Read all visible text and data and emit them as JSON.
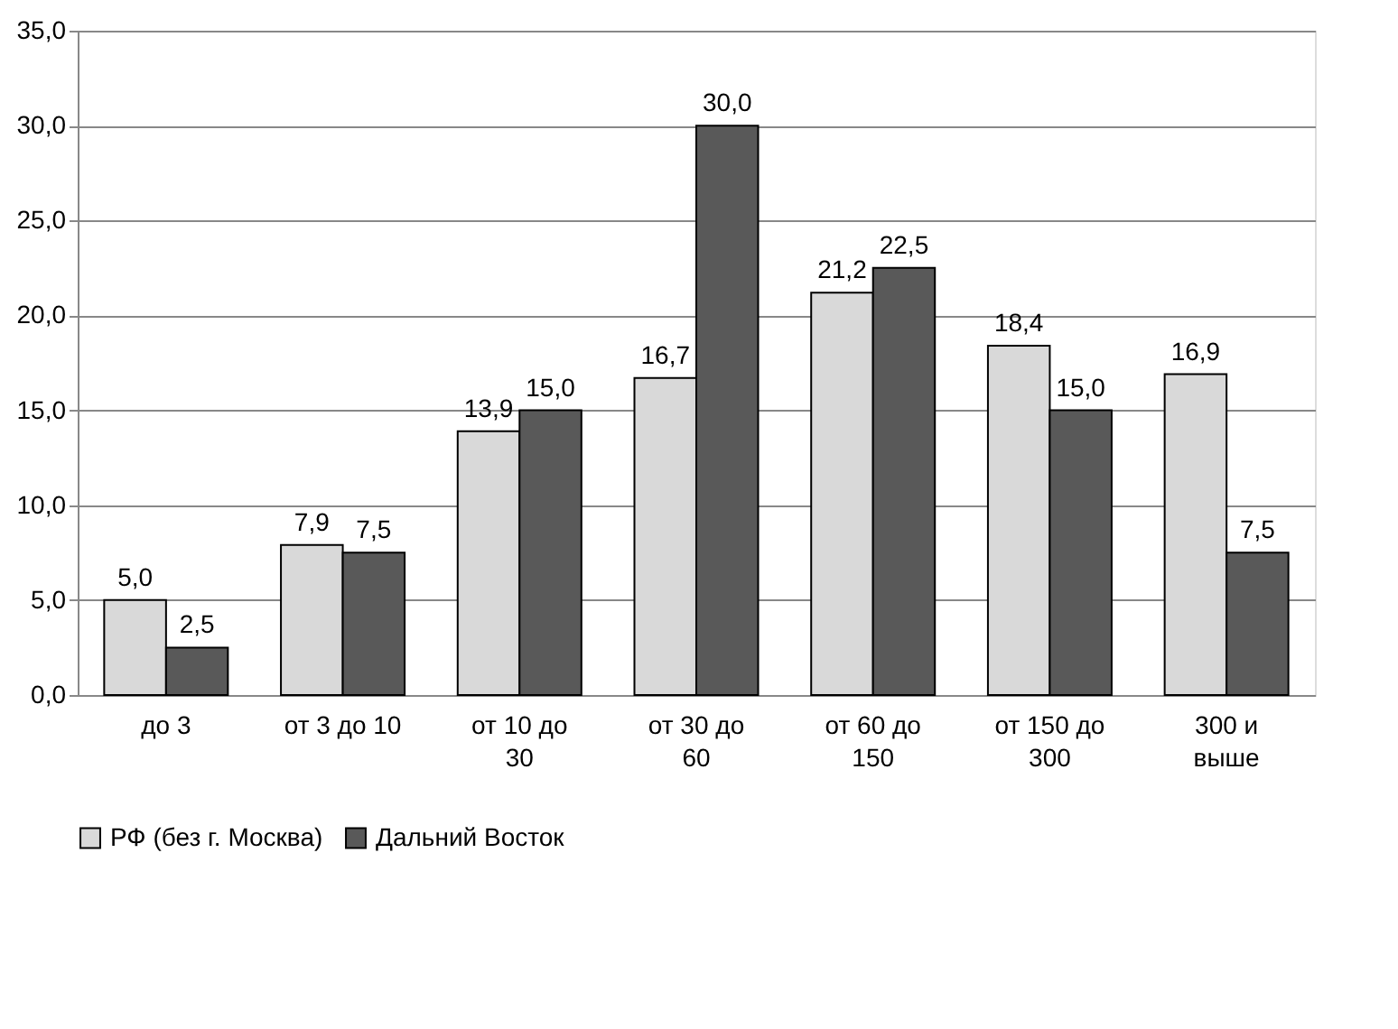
{
  "chart_data": {
    "type": "bar",
    "categories": [
      "до 3",
      "от 3 до 10",
      "от 10 до\n30",
      "от 30 до\n60",
      "от 60 до\n150",
      "от 150 до\n300",
      "300 и\nвыше"
    ],
    "series": [
      {
        "name": "РФ (без г. Москва)",
        "color": "#d9d9d9",
        "values": [
          5.0,
          7.9,
          13.9,
          16.7,
          21.2,
          18.4,
          16.9
        ],
        "value_labels": [
          "5,0",
          "7,9",
          "13,9",
          "16,7",
          "21,2",
          "18,4",
          "16,9"
        ]
      },
      {
        "name": "Дальний Восток",
        "color": "#595959",
        "values": [
          2.5,
          7.5,
          15.0,
          30.0,
          22.5,
          15.0,
          7.5
        ],
        "value_labels": [
          "2,5",
          "7,5",
          "15,0",
          "30,0",
          "22,5",
          "15,0",
          "7,5"
        ]
      }
    ],
    "ylim": [
      0,
      35
    ],
    "yticks": [
      {
        "value": 0,
        "label": "0,0"
      },
      {
        "value": 5,
        "label": "5,0"
      },
      {
        "value": 10,
        "label": "10,0"
      },
      {
        "value": 15,
        "label": "15,0"
      },
      {
        "value": 20,
        "label": "20,0"
      },
      {
        "value": 25,
        "label": "25,0"
      },
      {
        "value": 30,
        "label": "30,0"
      },
      {
        "value": 35,
        "label": "35,0"
      }
    ],
    "grid": "y",
    "legend": "bottom"
  }
}
